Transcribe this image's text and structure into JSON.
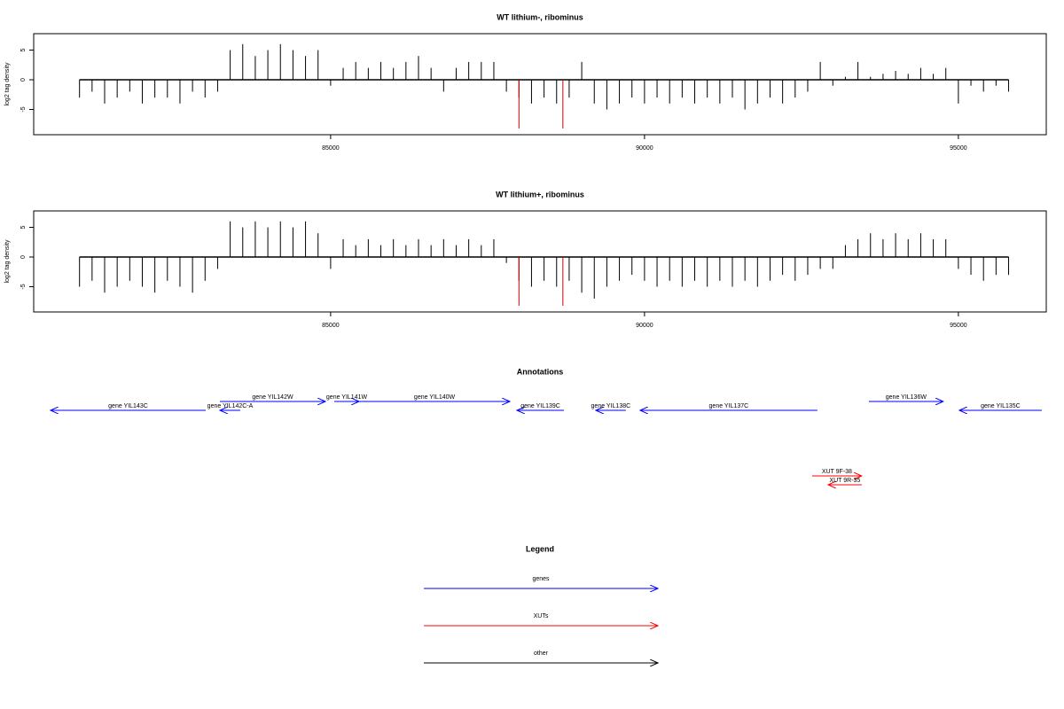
{
  "chart_data": [
    {
      "type": "spike",
      "title": "WT lithium-, ribominus",
      "y_label": "log2 tag density",
      "xlim": [
        80270,
        96400
      ],
      "ylim": [
        -9.25,
        7.76
      ],
      "xticks": [
        85000,
        90000,
        95000
      ],
      "yticks": [
        -5,
        0,
        5
      ],
      "series": [
        {
          "color": "#000000",
          "x": [
            81000,
            81200,
            81400,
            81600,
            81800,
            82000,
            82200,
            82400,
            82600,
            82800,
            83000,
            83200,
            83400,
            83600,
            83800,
            84000,
            84200,
            84400,
            84600,
            84800,
            85000,
            85200,
            85400,
            85600,
            85800,
            86000,
            86200,
            86400,
            86600,
            86800,
            87000,
            87200,
            87400,
            87600,
            87800,
            88000,
            88200,
            88400,
            88600,
            88800,
            89000,
            89200,
            89400,
            89600,
            89800,
            90000,
            90200,
            90400,
            90600,
            90800,
            91000,
            91200,
            91400,
            91600,
            91800,
            92000,
            92200,
            92400,
            92600,
            92800,
            93000,
            93200,
            93400,
            93600,
            93800,
            94000,
            94200,
            94400,
            94600,
            94800,
            95000,
            95200,
            95400,
            95600,
            95800
          ],
          "values": [
            -3,
            -2,
            -4,
            -3,
            -2,
            -4,
            -3,
            -3,
            -4,
            -2,
            -3,
            -2,
            5,
            6,
            4,
            5,
            6,
            5,
            4,
            5,
            -1,
            2,
            3,
            2,
            3,
            2,
            3,
            4,
            2,
            -2,
            2,
            3,
            3,
            3,
            -2,
            -3,
            -4,
            -3,
            -4,
            -3,
            3,
            -4,
            -5,
            -4,
            -3,
            -4,
            -3,
            -4,
            -3,
            -4,
            -3,
            -4,
            -3,
            -5,
            -4,
            -3,
            -4,
            -3,
            -2,
            3,
            -1,
            0.5,
            3,
            0.5,
            1,
            1.5,
            1,
            2,
            1,
            2,
            -4,
            -1,
            -2,
            -1,
            -2
          ]
        },
        {
          "color": "#cc0000",
          "x": [
            88000,
            88700
          ],
          "values": [
            -8.2,
            -8.2
          ]
        }
      ]
    },
    {
      "type": "spike",
      "title": "WT lithium+, ribominus",
      "y_label": "log2 tag density",
      "xlim": [
        80270,
        96400
      ],
      "ylim": [
        -9.25,
        7.76
      ],
      "xticks": [
        85000,
        90000,
        95000
      ],
      "yticks": [
        -5,
        0,
        5
      ],
      "series": [
        {
          "color": "#000000",
          "x": [
            81000,
            81200,
            81400,
            81600,
            81800,
            82000,
            82200,
            82400,
            82600,
            82800,
            83000,
            83200,
            83400,
            83600,
            83800,
            84000,
            84200,
            84400,
            84600,
            84800,
            85000,
            85200,
            85400,
            85600,
            85800,
            86000,
            86200,
            86400,
            86600,
            86800,
            87000,
            87200,
            87400,
            87600,
            87800,
            88000,
            88200,
            88400,
            88600,
            88800,
            89000,
            89200,
            89400,
            89600,
            89800,
            90000,
            90200,
            90400,
            90600,
            90800,
            91000,
            91200,
            91400,
            91600,
            91800,
            92000,
            92200,
            92400,
            92600,
            92800,
            93000,
            93200,
            93400,
            93600,
            93800,
            94000,
            94200,
            94400,
            94600,
            94800,
            95000,
            95200,
            95400,
            95600,
            95800
          ],
          "values": [
            -5,
            -4,
            -6,
            -5,
            -4,
            -5,
            -6,
            -4,
            -5,
            -6,
            -4,
            -2,
            6,
            5,
            6,
            5,
            6,
            5,
            6,
            4,
            -2,
            3,
            2,
            3,
            2,
            3,
            2,
            3,
            2,
            3,
            2,
            3,
            2,
            3,
            -1,
            -4,
            -5,
            -4,
            -5,
            -4,
            -6,
            -7,
            -5,
            -4,
            -3,
            -4,
            -5,
            -4,
            -5,
            -4,
            -5,
            -4,
            -5,
            -4,
            -5,
            -4,
            -3,
            -4,
            -3,
            -2,
            -2,
            2,
            3,
            4,
            3,
            4,
            3,
            4,
            3,
            3,
            -2,
            -3,
            -4,
            -3,
            -3
          ]
        },
        {
          "color": "#cc0000",
          "x": [
            88000,
            88700
          ],
          "values": [
            -8.2,
            -8.2
          ]
        }
      ]
    }
  ],
  "annotations": {
    "title": "Annotations",
    "tracks": [
      {
        "color": "#0000ff",
        "features": [
          {
            "label": "gene YIL143C",
            "start": 83010,
            "end": 80538
          },
          {
            "label": "gene YIL142C-A",
            "start": 83561,
            "end": 83236
          },
          {
            "label": "gene YIL142W",
            "start": 83236,
            "end": 84917
          },
          {
            "label": "gene YIL141W",
            "start": 85058,
            "end": 85454
          },
          {
            "label": "gene YIL140W",
            "start": 85454,
            "end": 87855
          },
          {
            "label": "gene YIL139C",
            "start": 88717,
            "end": 87968
          },
          {
            "label": "gene YIL138C",
            "start": 89703,
            "end": 89223
          },
          {
            "label": "gene YIL137C",
            "start": 92754,
            "end": 89929
          },
          {
            "label": "gene YIL136W",
            "start": 93573,
            "end": 94760
          },
          {
            "label": "gene YIL135C",
            "start": 96328,
            "end": 95014
          }
        ]
      },
      {
        "color": "#ff0000",
        "features": [
          {
            "label": "XUT 9F-38",
            "start": 92670,
            "end": 93460
          },
          {
            "label": "XUT 9R-35",
            "start": 93460,
            "end": 92924
          }
        ]
      }
    ]
  },
  "legend": {
    "title": "Legend",
    "items": [
      {
        "label": "genes",
        "color": "#0000ff"
      },
      {
        "label": "XUTs",
        "color": "#ff0000"
      },
      {
        "label": "other",
        "color": "#000000"
      }
    ]
  }
}
